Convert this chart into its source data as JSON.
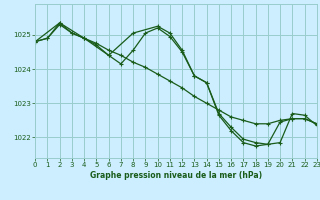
{
  "title": "Graphe pression niveau de la mer (hPa)",
  "bg_color": "#cceeff",
  "grid_color": "#99cccc",
  "line_color": "#1a5c1a",
  "xlim": [
    0,
    23
  ],
  "ylim": [
    1021.4,
    1025.9
  ],
  "yticks": [
    1022,
    1023,
    1024,
    1025
  ],
  "xticks": [
    0,
    1,
    2,
    3,
    4,
    5,
    6,
    7,
    8,
    9,
    10,
    11,
    12,
    13,
    14,
    15,
    16,
    17,
    18,
    19,
    20,
    21,
    22,
    23
  ],
  "series": [
    {
      "x": [
        0,
        1,
        2,
        3,
        4,
        5,
        6,
        7,
        8,
        9,
        10,
        11,
        12,
        13,
        14,
        15,
        16,
        17,
        18,
        19,
        20,
        21,
        22,
        23
      ],
      "y": [
        1024.8,
        1024.9,
        1025.3,
        1025.05,
        1024.9,
        1024.75,
        1024.55,
        1024.4,
        1024.2,
        1024.05,
        1023.85,
        1023.65,
        1023.45,
        1023.2,
        1023.0,
        1022.8,
        1022.6,
        1022.5,
        1022.4,
        1022.4,
        1022.5,
        1022.55,
        1022.55,
        1022.4
      ]
    },
    {
      "x": [
        0,
        1,
        2,
        3,
        4,
        5,
        6,
        7,
        8,
        9,
        10,
        11,
        12,
        13,
        14,
        15,
        16,
        17,
        18,
        19,
        20,
        21,
        22,
        23
      ],
      "y": [
        1024.8,
        1024.9,
        1025.35,
        1025.05,
        1024.9,
        1024.7,
        1024.4,
        1024.15,
        1024.55,
        1025.05,
        1025.2,
        1024.95,
        1024.5,
        1023.8,
        1023.6,
        1022.7,
        1022.3,
        1021.95,
        1021.85,
        1021.8,
        1022.45,
        1022.55,
        1022.55,
        1022.4
      ]
    },
    {
      "x": [
        0,
        2,
        4,
        6,
        8,
        10,
        11,
        12,
        13,
        14,
        15,
        16,
        17,
        18,
        19,
        20,
        21,
        22,
        23
      ],
      "y": [
        1024.8,
        1025.35,
        1024.9,
        1024.4,
        1025.05,
        1025.25,
        1025.05,
        1024.55,
        1023.8,
        1023.6,
        1022.65,
        1022.2,
        1021.85,
        1021.75,
        1021.8,
        1021.85,
        1022.7,
        1022.65,
        1022.35
      ]
    }
  ]
}
